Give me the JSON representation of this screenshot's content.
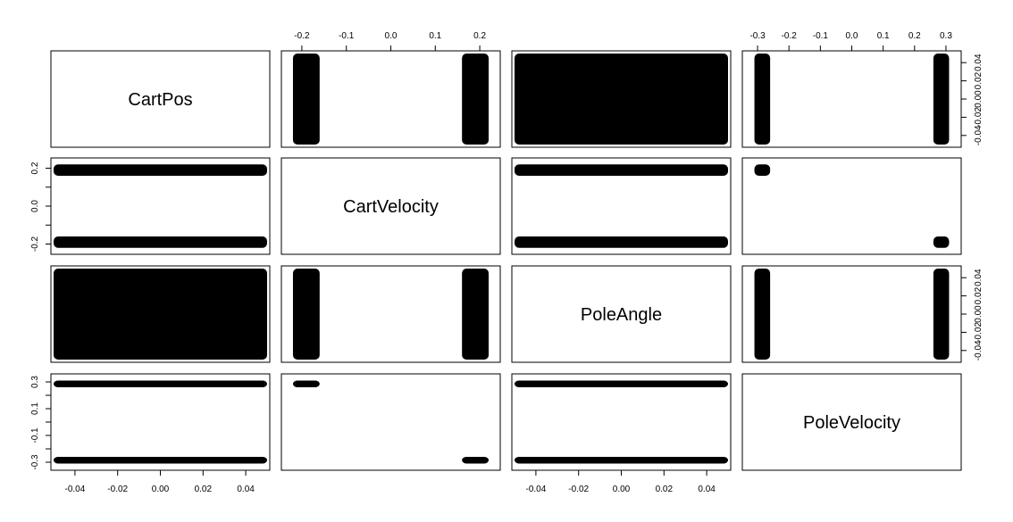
{
  "chart_data": {
    "type": "scatter",
    "subtype": "pairs-matrix",
    "variables": [
      {
        "name": "CartPos",
        "range": [
          -0.05,
          0.05
        ],
        "ticks": [
          "-0.04",
          "-0.02",
          "0.00",
          "0.02",
          "0.04"
        ]
      },
      {
        "name": "CartVelocity",
        "range": [
          -0.24,
          0.24
        ],
        "ticks": [
          "-0.2",
          "-0.1",
          "0.0",
          "0.1",
          "0.2"
        ],
        "left_ticks": [
          "-0.2",
          "0.0",
          "0.2"
        ]
      },
      {
        "name": "PoleAngle",
        "range": [
          -0.05,
          0.05
        ],
        "ticks": [
          "-0.04",
          "-0.02",
          "0.00",
          "0.02",
          "0.04"
        ]
      },
      {
        "name": "PoleVelocity",
        "range": [
          -0.34,
          0.34
        ],
        "ticks": [
          "-0.3",
          "-0.2",
          "-0.1",
          "0.0",
          "0.1",
          "0.2",
          "0.3"
        ],
        "left_ticks": [
          "-0.3",
          "-0.1",
          "0.1",
          "0.3"
        ]
      }
    ],
    "value_clusters": {
      "CartPos": [
        [
          -0.05,
          0.05
        ]
      ],
      "CartVelocity": [
        [
          -0.22,
          -0.16
        ],
        [
          0.16,
          0.22
        ]
      ],
      "PoleAngle": [
        [
          -0.05,
          0.05
        ]
      ],
      "PoleVelocity": [
        [
          -0.31,
          -0.26
        ],
        [
          0.26,
          0.31
        ]
      ]
    },
    "joint_clusters": {
      "CartVelocity|PoleVelocity": [
        [
          [
            0.16,
            0.22
          ],
          [
            -0.31,
            -0.26
          ]
        ],
        [
          [
            -0.22,
            -0.16
          ],
          [
            0.26,
            0.31
          ]
        ]
      ]
    },
    "axes_top": [
      1,
      3
    ],
    "axes_bottom": [
      0,
      2
    ],
    "axes_left": [
      1,
      3
    ],
    "axes_right": [
      0,
      2
    ],
    "point_color": "#000000",
    "grid": false,
    "legend": "none"
  }
}
